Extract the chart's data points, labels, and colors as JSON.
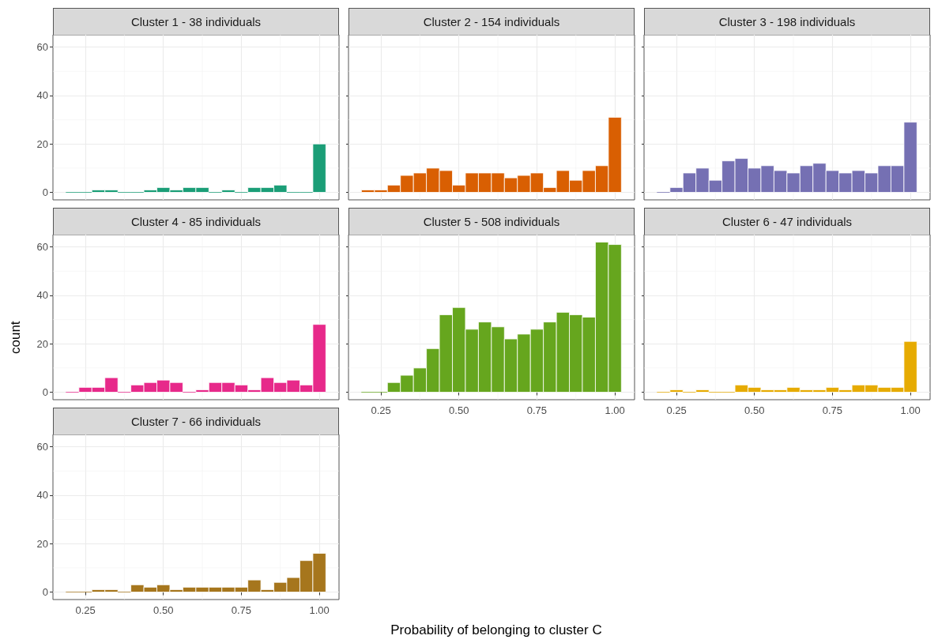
{
  "chart_data": [
    {
      "type": "histogram",
      "title": "Cluster 1 - 38 individuals",
      "color": "#1b9e77",
      "bins": [
        0.1875,
        0.2292,
        0.2708,
        0.3125,
        0.3542,
        0.3958,
        0.4375,
        0.4792,
        0.5208,
        0.5625,
        0.6042,
        0.6458,
        0.6875,
        0.7292,
        0.7708,
        0.8125,
        0.8542,
        0.8958,
        0.9375,
        0.9792,
        1.0208
      ],
      "values": [
        0,
        0,
        1,
        1,
        0,
        0,
        1,
        2,
        1,
        2,
        2,
        0,
        1,
        0,
        2,
        2,
        3,
        0,
        0,
        20
      ],
      "xlim": [
        0.146,
        1.063
      ],
      "ylim": [
        -3.1,
        65.1
      ],
      "xticks": [
        0.25,
        0.5,
        0.75,
        1
      ],
      "yticks": [
        0,
        20,
        40,
        60
      ],
      "grid": true,
      "tick_labels": "y"
    },
    {
      "type": "histogram",
      "title": "Cluster 2 - 154 individuals",
      "color": "#d95f02",
      "bins": [
        0.1875,
        0.2292,
        0.2708,
        0.3125,
        0.3542,
        0.3958,
        0.4375,
        0.4792,
        0.5208,
        0.5625,
        0.6042,
        0.6458,
        0.6875,
        0.7292,
        0.7708,
        0.8125,
        0.8542,
        0.8958,
        0.9375,
        0.9792,
        1.0208
      ],
      "values": [
        1,
        1,
        3,
        7,
        8,
        10,
        9,
        3,
        8,
        8,
        8,
        6,
        7,
        8,
        2,
        9,
        5,
        9,
        11,
        31
      ],
      "xlim": [
        0.146,
        1.063
      ],
      "ylim": [
        -3.1,
        65.1
      ],
      "xticks": [
        0.25,
        0.5,
        0.75,
        1
      ],
      "yticks": [
        0,
        20,
        40,
        60
      ],
      "grid": true,
      "tick_labels": false
    },
    {
      "type": "histogram",
      "title": "Cluster 3 - 198 individuals",
      "color": "#7570b3",
      "bins": [
        0.1875,
        0.2292,
        0.2708,
        0.3125,
        0.3542,
        0.3958,
        0.4375,
        0.4792,
        0.5208,
        0.5625,
        0.6042,
        0.6458,
        0.6875,
        0.7292,
        0.7708,
        0.8125,
        0.8542,
        0.8958,
        0.9375,
        0.9792,
        1.0208
      ],
      "values": [
        0,
        2,
        8,
        10,
        5,
        13,
        14,
        10,
        11,
        9,
        8,
        11,
        12,
        9,
        8,
        9,
        8,
        11,
        11,
        29
      ],
      "xlim": [
        0.146,
        1.063
      ],
      "ylim": [
        -3.1,
        65.1
      ],
      "xticks": [
        0.25,
        0.5,
        0.75,
        1
      ],
      "yticks": [
        0,
        20,
        40,
        60
      ],
      "grid": true,
      "tick_labels": false
    },
    {
      "type": "histogram",
      "title": "Cluster 4 - 85 individuals",
      "ylabel": "count",
      "color": "#e7298a",
      "bins": [
        0.1875,
        0.2292,
        0.2708,
        0.3125,
        0.3542,
        0.3958,
        0.4375,
        0.4792,
        0.5208,
        0.5625,
        0.6042,
        0.6458,
        0.6875,
        0.7292,
        0.7708,
        0.8125,
        0.8542,
        0.8958,
        0.9375,
        0.9792,
        1.0208
      ],
      "values": [
        0,
        2,
        2,
        6,
        0,
        3,
        4,
        5,
        4,
        0,
        1,
        4,
        4,
        3,
        1,
        6,
        4,
        5,
        3,
        28
      ],
      "xlim": [
        0.146,
        1.063
      ],
      "ylim": [
        -3.1,
        65.1
      ],
      "xticks": [
        0.25,
        0.5,
        0.75,
        1
      ],
      "yticks": [
        0,
        20,
        40,
        60
      ],
      "grid": true,
      "tick_labels": "y"
    },
    {
      "type": "histogram",
      "title": "Cluster 5 - 508 individuals",
      "color": "#66a61e",
      "bins": [
        0.1875,
        0.2292,
        0.2708,
        0.3125,
        0.3542,
        0.3958,
        0.4375,
        0.4792,
        0.5208,
        0.5625,
        0.6042,
        0.6458,
        0.6875,
        0.7292,
        0.7708,
        0.8125,
        0.8542,
        0.8958,
        0.9375,
        0.9792,
        1.0208
      ],
      "values": [
        0,
        0,
        4,
        7,
        10,
        18,
        32,
        35,
        26,
        29,
        27,
        22,
        24,
        26,
        29,
        33,
        32,
        31,
        62,
        61
      ],
      "xlim": [
        0.146,
        1.063
      ],
      "ylim": [
        -3.1,
        65.1
      ],
      "xticks": [
        {
          "value": 0.25,
          "label": "0.25"
        },
        {
          "value": 0.5,
          "label": "0.50"
        },
        {
          "value": 0.75,
          "label": "0.75"
        },
        {
          "value": 1,
          "label": "1.00"
        }
      ],
      "yticks": [
        0,
        20,
        40,
        60
      ],
      "grid": true,
      "tick_labels": "x"
    },
    {
      "type": "histogram",
      "title": "Cluster 6 - 47 individuals",
      "color": "#e6ab02",
      "bins": [
        0.1875,
        0.2292,
        0.2708,
        0.3125,
        0.3542,
        0.3958,
        0.4375,
        0.4792,
        0.5208,
        0.5625,
        0.6042,
        0.6458,
        0.6875,
        0.7292,
        0.7708,
        0.8125,
        0.8542,
        0.8958,
        0.9375,
        0.9792,
        1.0208
      ],
      "values": [
        0,
        1,
        0,
        1,
        0,
        0,
        3,
        2,
        1,
        1,
        2,
        1,
        1,
        2,
        1,
        3,
        3,
        2,
        2,
        21
      ],
      "xlim": [
        0.146,
        1.063
      ],
      "ylim": [
        -3.1,
        65.1
      ],
      "xticks": [
        {
          "value": 0.25,
          "label": "0.25"
        },
        {
          "value": 0.5,
          "label": "0.50"
        },
        {
          "value": 0.75,
          "label": "0.75"
        },
        {
          "value": 1,
          "label": "1.00"
        }
      ],
      "yticks": [
        0,
        20,
        40,
        60
      ],
      "grid": true,
      "tick_labels": "x"
    },
    {
      "type": "histogram",
      "title": "Cluster 7 - 66 individuals",
      "xlabel": "Probability of belonging to cluster C",
      "color": "#a6761d",
      "bins": [
        0.1875,
        0.2292,
        0.2708,
        0.3125,
        0.3542,
        0.3958,
        0.4375,
        0.4792,
        0.5208,
        0.5625,
        0.6042,
        0.6458,
        0.6875,
        0.7292,
        0.7708,
        0.8125,
        0.8542,
        0.8958,
        0.9375,
        0.9792,
        1.0208
      ],
      "values": [
        0,
        0,
        1,
        1,
        0,
        3,
        2,
        3,
        1,
        2,
        2,
        2,
        2,
        2,
        5,
        1,
        4,
        6,
        13,
        16
      ],
      "xlim": [
        0.146,
        1.063
      ],
      "ylim": [
        -3.1,
        65.1
      ],
      "xticks": [
        {
          "value": 0.25,
          "label": "0.25"
        },
        {
          "value": 0.5,
          "label": "0.50"
        },
        {
          "value": 0.75,
          "label": "0.75"
        },
        {
          "value": 1,
          "label": "1.00"
        }
      ],
      "yticks": [
        0,
        20,
        40,
        60
      ],
      "grid": true
    }
  ]
}
